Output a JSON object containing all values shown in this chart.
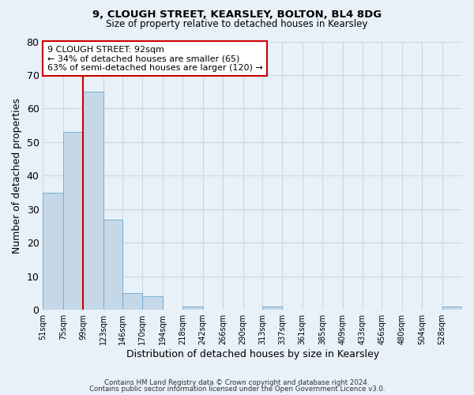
{
  "title": "9, CLOUGH STREET, KEARSLEY, BOLTON, BL4 8DG",
  "subtitle": "Size of property relative to detached houses in Kearsley",
  "xlabel": "Distribution of detached houses by size in Kearsley",
  "ylabel": "Number of detached properties",
  "footer_line1": "Contains HM Land Registry data © Crown copyright and database right 2024.",
  "footer_line2": "Contains public sector information licensed under the Open Government Licence v3.0.",
  "bin_labels": [
    "51sqm",
    "75sqm",
    "99sqm",
    "123sqm",
    "146sqm",
    "170sqm",
    "194sqm",
    "218sqm",
    "242sqm",
    "266sqm",
    "290sqm",
    "313sqm",
    "337sqm",
    "361sqm",
    "385sqm",
    "409sqm",
    "433sqm",
    "456sqm",
    "480sqm",
    "504sqm",
    "528sqm"
  ],
  "bar_heights": [
    35,
    53,
    65,
    27,
    5,
    4,
    0,
    1,
    0,
    0,
    0,
    1,
    0,
    0,
    0,
    0,
    0,
    0,
    0,
    0,
    1
  ],
  "bar_color": "#c5d8e8",
  "bar_edge_color": "#7aaed0",
  "bin_edges": [
    51,
    75,
    99,
    123,
    146,
    170,
    194,
    218,
    242,
    266,
    290,
    313,
    337,
    361,
    385,
    409,
    433,
    456,
    480,
    504,
    528,
    552
  ],
  "ylim": [
    0,
    80
  ],
  "annotation_title": "9 CLOUGH STREET: 92sqm",
  "annotation_line2": "← 34% of detached houses are smaller (65)",
  "annotation_line3": "63% of semi-detached houses are larger (120) →",
  "annotation_box_color": "#ffffff",
  "annotation_border_color": "#cc0000",
  "vline_color": "#cc0000",
  "grid_color": "#c8d8e8",
  "bg_color": "#e8f0f8"
}
